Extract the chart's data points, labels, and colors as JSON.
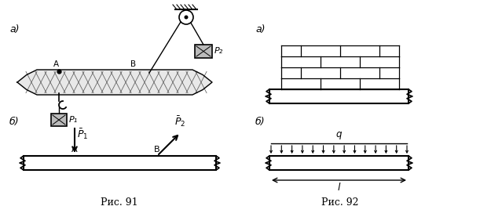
{
  "bg_color": "#ffffff",
  "line_color": "#000000",
  "fig91_label": "Рис. 91",
  "fig92_label": "Рис. 92",
  "label_a": "а)",
  "label_b": "б)",
  "label_A": "A",
  "label_B": "B",
  "label_P1": "P₁",
  "label_P2": "P₂",
  "label_P1bar": "$\\bar{P}_1$",
  "label_P2bar": "$\\bar{P}_2$",
  "label_q": "q",
  "label_l": "l"
}
